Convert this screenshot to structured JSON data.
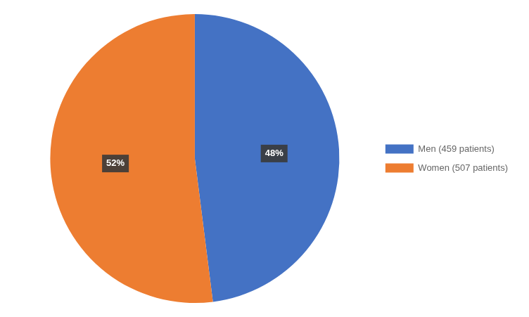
{
  "chart_data": {
    "type": "pie",
    "categories": [
      "Men (459 patients)",
      "Women (507 patients)"
    ],
    "values": [
      48,
      52
    ],
    "value_labels": [
      "48%",
      "52%"
    ],
    "data_labels": true,
    "colors": [
      "#4472C4",
      "#ED7D31"
    ],
    "legend": "right"
  }
}
